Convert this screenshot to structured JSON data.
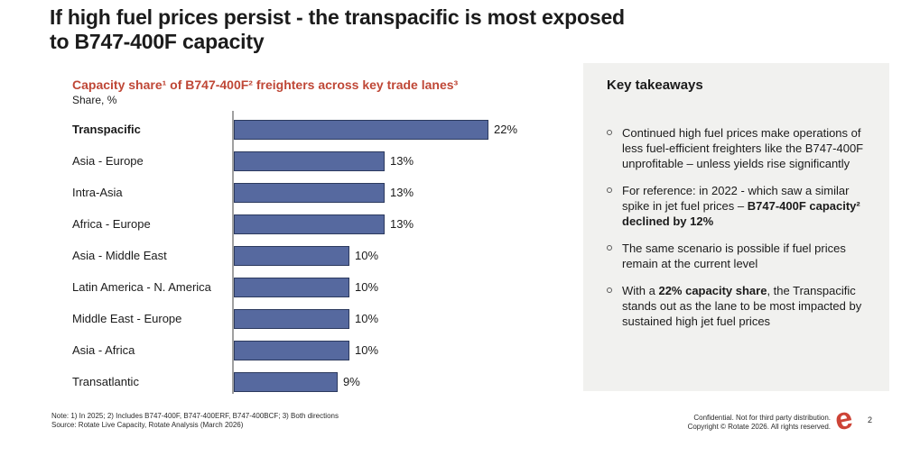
{
  "slide": {
    "title": "If high fuel prices persist - the transpacific is most exposed to B747-400F capacity"
  },
  "chart": {
    "title": "Capacity share¹ of B747-400F² freighters  across key trade lanes³",
    "unit_label": "Share, %"
  },
  "chart_data": {
    "type": "bar",
    "orientation": "horizontal",
    "title": "Capacity share of B747-400F freighters across key trade lanes",
    "xlabel": "Share, %",
    "ylabel": "",
    "xlim": [
      0,
      24
    ],
    "grid": false,
    "value_suffix": "%",
    "bar_color": "#56699f",
    "bar_border_color": "#2c3a5e",
    "emphasized_index": 0,
    "categories": [
      "Transpacific",
      "Asia - Europe",
      "Intra-Asia",
      "Africa - Europe",
      "Asia - Middle East",
      "Latin America - N. America",
      "Middle East - Europe",
      "Asia - Africa",
      "Transatlantic"
    ],
    "values": [
      22,
      13,
      13,
      13,
      10,
      10,
      10,
      10,
      9
    ]
  },
  "takeaways": {
    "heading": "Key takeaways",
    "bullets": [
      {
        "segments": [
          {
            "text": "Continued high fuel prices make operations of less fuel-efficient freighters like the B747-400F unprofitable – unless yields rise significantly",
            "bold": false
          }
        ]
      },
      {
        "segments": [
          {
            "text": "For reference: in 2022 - which saw a similar spike in jet fuel prices – ",
            "bold": false
          },
          {
            "text": "B747-400F capacity² declined by 12%",
            "bold": true
          }
        ]
      },
      {
        "segments": [
          {
            "text": "The same scenario is possible if fuel prices remain at the current level",
            "bold": false
          }
        ]
      },
      {
        "segments": [
          {
            "text": "With a ",
            "bold": false
          },
          {
            "text": "22% capacity share",
            "bold": true
          },
          {
            "text": ", the Transpacific stands out as the lane to be most impacted by sustained high jet fuel prices",
            "bold": false
          }
        ]
      }
    ]
  },
  "footer": {
    "note_line1": "Note: 1) In 2025; 2) Includes B747-400F, B747-400ERF, B747-400BCF; 3) Both directions",
    "note_line2": "Source: Rotate Live Capacity,  Rotate Analysis (March 2026)",
    "legal_line1": "Confidential. Not for third party distribution.",
    "legal_line2": "Copyright © Rotate 2026. All rights reserved.",
    "logo_glyph": "e",
    "page_number": "2"
  }
}
